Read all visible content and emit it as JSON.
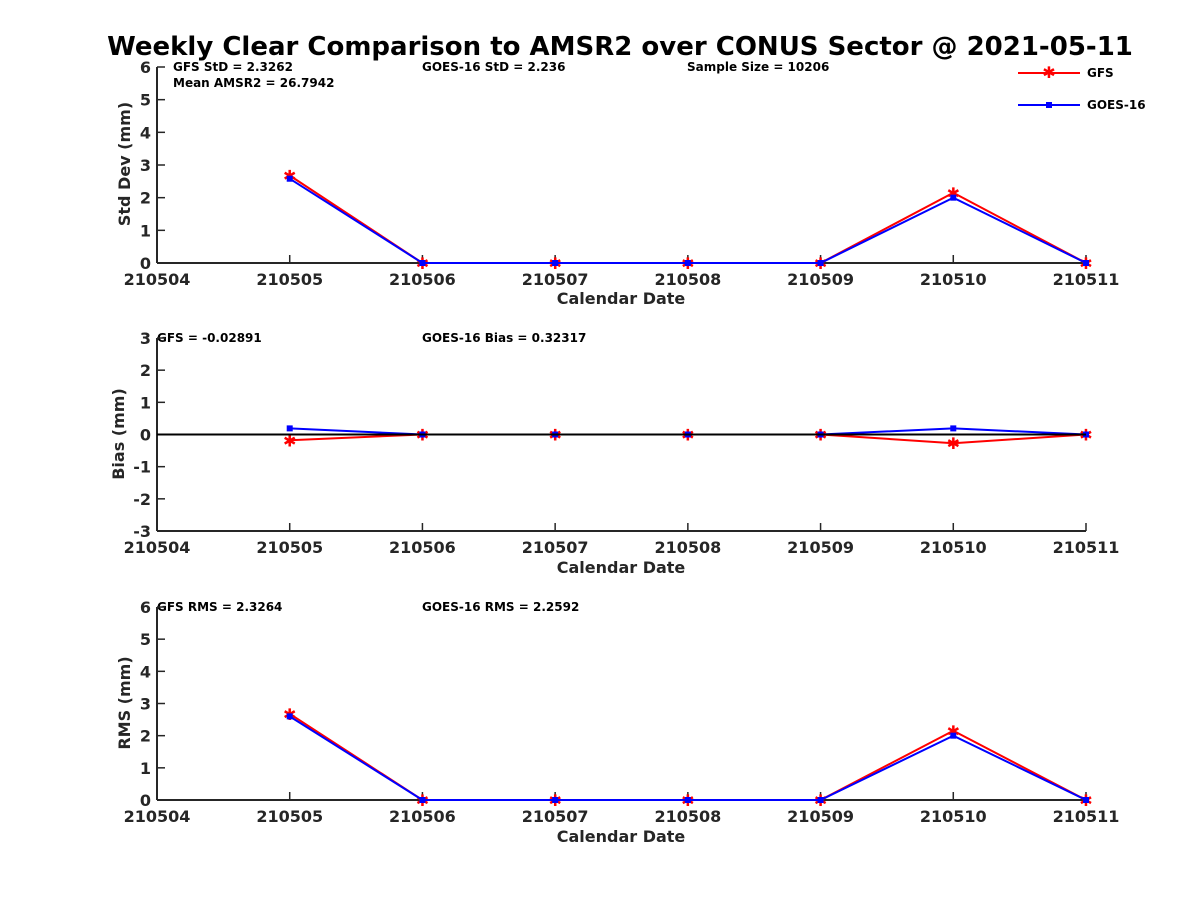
{
  "title": "Weekly Clear Comparison to AMSR2 over CONUS Sector @ 2021-05-11",
  "legend": [
    {
      "name": "GFS",
      "color": "#ff0000",
      "marker": "asterisk"
    },
    {
      "name": "GOES-16",
      "color": "#0000ff",
      "marker": "square"
    }
  ],
  "chart_data": [
    {
      "type": "line",
      "categories": [
        "210504",
        "210505",
        "210506",
        "210507",
        "210508",
        "210509",
        "210510",
        "210511"
      ],
      "xlabel": "Calendar Date",
      "ylabel": "Std Dev (mm)",
      "ylim": [
        0,
        6
      ],
      "yticks": [
        "0",
        "1",
        "2",
        "3",
        "4",
        "5",
        "6"
      ],
      "annotations": [
        "GFS StD = 2.3262",
        "Mean AMSR2 = 26.7942",
        "GOES-16 StD = 2.236",
        "Sample Size = 10206"
      ],
      "series": [
        {
          "name": "GFS",
          "color": "#ff0000",
          "values": [
            null,
            2.68,
            0,
            0,
            0,
            0,
            2.15,
            0
          ]
        },
        {
          "name": "GOES-16",
          "color": "#0000ff",
          "values": [
            null,
            2.58,
            0,
            0,
            0,
            0,
            2.0,
            0
          ]
        }
      ]
    },
    {
      "type": "line",
      "categories": [
        "210504",
        "210505",
        "210506",
        "210507",
        "210508",
        "210509",
        "210510",
        "210511"
      ],
      "xlabel": "Calendar Date",
      "ylabel": "Bias (mm)",
      "ylim": [
        -3,
        3
      ],
      "yticks": [
        "-3",
        "-2",
        "-1",
        "0",
        "1",
        "2",
        "3"
      ],
      "zero_line": true,
      "annotations": [
        "GFS = -0.02891",
        "GOES-16 Bias  = 0.32317"
      ],
      "series": [
        {
          "name": "GFS",
          "color": "#ff0000",
          "values": [
            null,
            -0.18,
            0,
            0,
            0,
            0,
            -0.27,
            0
          ]
        },
        {
          "name": "GOES-16",
          "color": "#0000ff",
          "values": [
            null,
            0.19,
            0,
            0,
            0,
            0,
            0.19,
            0
          ]
        }
      ]
    },
    {
      "type": "line",
      "categories": [
        "210504",
        "210505",
        "210506",
        "210507",
        "210508",
        "210509",
        "210510",
        "210511"
      ],
      "xlabel": "Calendar Date",
      "ylabel": "RMS (mm)",
      "ylim": [
        0,
        6
      ],
      "yticks": [
        "0",
        "1",
        "2",
        "3",
        "4",
        "5",
        "6"
      ],
      "annotations": [
        "GFS RMS = 2.3264",
        "GOES-16 RMS = 2.2592"
      ],
      "series": [
        {
          "name": "GFS",
          "color": "#ff0000",
          "values": [
            null,
            2.68,
            0,
            0,
            0,
            0,
            2.15,
            0
          ]
        },
        {
          "name": "GOES-16",
          "color": "#0000ff",
          "values": [
            null,
            2.6,
            0,
            0,
            0,
            0,
            2.0,
            0
          ]
        }
      ]
    }
  ]
}
